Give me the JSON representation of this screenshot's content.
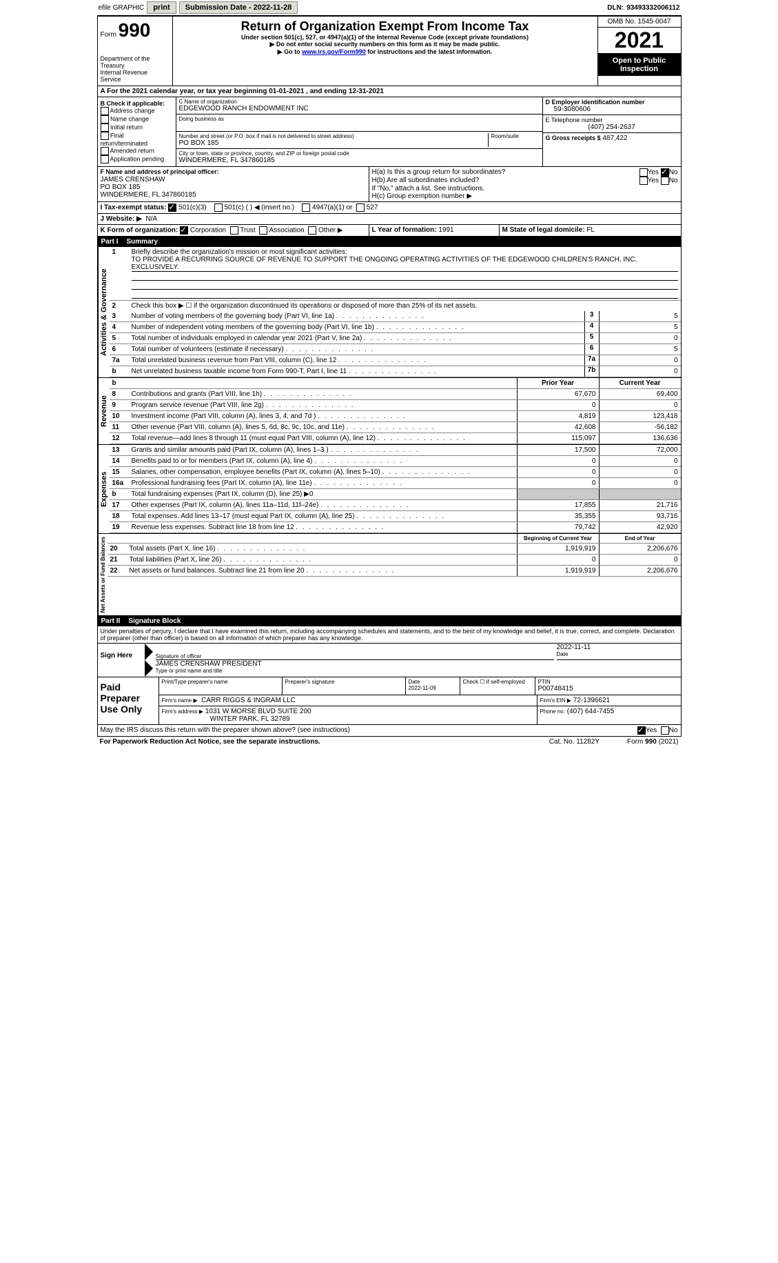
{
  "topbar": {
    "efile": "efile GRAPHIC",
    "print": "print",
    "submission": "Submission Date - 2022-11-28",
    "dln_label": "DLN:",
    "dln": "93493332006112"
  },
  "header": {
    "form_label": "Form",
    "form_num": "990",
    "dept": "Department of the Treasury",
    "irs": "Internal Revenue Service",
    "title": "Return of Organization Exempt From Income Tax",
    "subtitle": "Under section 501(c), 527, or 4947(a)(1) of the Internal Revenue Code (except private foundations)",
    "note1": "▶ Do not enter social security numbers on this form as it may be made public.",
    "note2_pre": "▶ Go to ",
    "note2_link": "www.irs.gov/Form990",
    "note2_post": " for instructions and the latest information.",
    "omb": "OMB No. 1545-0047",
    "year": "2021",
    "inspection": "Open to Public Inspection"
  },
  "line_a": "A For the 2021 calendar year, or tax year beginning 01-01-2021    , and ending 12-31-2021",
  "box_b": {
    "label": "B Check if applicable:",
    "opts": [
      "Address change",
      "Name change",
      "Initial return",
      "Final return/terminated",
      "Amended return",
      "Application pending"
    ]
  },
  "box_c": {
    "label": "C Name of organization",
    "name": "EDGEWOOD RANCH ENDOWMENT INC",
    "dba": "Doing business as",
    "addr_label": "Number and street (or P.O. box if mail is not delivered to street address)",
    "room_label": "Room/suite",
    "addr": "PO BOX 185",
    "city_label": "City or town, state or province, country, and ZIP or foreign postal code",
    "city": "WINDERMERE, FL  347860185"
  },
  "box_d": {
    "label": "D Employer identification number",
    "val": "59-3080606"
  },
  "box_e": {
    "label": "E Telephone number",
    "val": "(407) 254-2637"
  },
  "box_g": {
    "label": "G Gross receipts $",
    "val": "487,422"
  },
  "box_f": {
    "label": "F Name and address of principal officer:",
    "name": "JAMES CRENSHAW",
    "addr": "PO BOX 185",
    "city": "WINDERMERE, FL  347860185"
  },
  "box_h": {
    "ha": "H(a)  Is this a group return for subordinates?",
    "hb": "H(b)  Are all subordinates included?",
    "hb_note": "If \"No,\" attach a list. See instructions.",
    "hc": "H(c)  Group exemption number ▶"
  },
  "box_i": {
    "label": "I   Tax-exempt status:",
    "o1": "501(c)(3)",
    "o2": "501(c) (  ) ◀ (insert no.)",
    "o3": "4947(a)(1) or",
    "o4": "527"
  },
  "box_j": {
    "label": "J   Website: ▶",
    "val": "N/A"
  },
  "box_k": {
    "label": "K Form of organization:",
    "o1": "Corporation",
    "o2": "Trust",
    "o3": "Association",
    "o4": "Other ▶"
  },
  "box_l": {
    "label": "L Year of formation:",
    "val": "1991"
  },
  "box_m": {
    "label": "M State of legal domicile:",
    "val": "FL"
  },
  "part1": {
    "num": "Part I",
    "title": "Summary"
  },
  "summary": {
    "q1": "Briefly describe the organization's mission or most significant activities:",
    "mission": "TO PROVIDE A RECURRING SOURCE OF REVENUE TO SUPPORT THE ONGOING OPERATING ACTIVITIES OF THE EDGEWOOD CHILDREN'S RANCH, INC. EXCLUSIVELY.",
    "q2": "Check this box ▶ ☐ if the organization discontinued its operations or disposed of more than 25% of its net assets.",
    "hdr_prior": "Prior Year",
    "hdr_curr": "Current Year",
    "rows_gov": [
      {
        "n": "3",
        "d": "Number of voting members of the governing body (Part VI, line 1a)",
        "b": "3",
        "v": "5"
      },
      {
        "n": "4",
        "d": "Number of independent voting members of the governing body (Part VI, line 1b)",
        "b": "4",
        "v": "5"
      },
      {
        "n": "5",
        "d": "Total number of individuals employed in calendar year 2021 (Part V, line 2a)",
        "b": "5",
        "v": "0"
      },
      {
        "n": "6",
        "d": "Total number of volunteers (estimate if necessary)",
        "b": "6",
        "v": "5"
      },
      {
        "n": "7a",
        "d": "Total unrelated business revenue from Part VIII, column (C), line 12",
        "b": "7a",
        "v": "0"
      },
      {
        "n": "b",
        "d": "Net unrelated business taxable income from Form 990-T, Part I, line 11",
        "b": "7b",
        "v": "0"
      }
    ],
    "rows_rev": [
      {
        "n": "8",
        "d": "Contributions and grants (Part VIII, line 1h)",
        "p": "67,670",
        "c": "69,400"
      },
      {
        "n": "9",
        "d": "Program service revenue (Part VIII, line 2g)",
        "p": "0",
        "c": "0"
      },
      {
        "n": "10",
        "d": "Investment income (Part VIII, column (A), lines 3, 4, and 7d )",
        "p": "4,819",
        "c": "123,418"
      },
      {
        "n": "11",
        "d": "Other revenue (Part VIII, column (A), lines 5, 6d, 8c, 9c, 10c, and 11e)",
        "p": "42,608",
        "c": "-56,182"
      },
      {
        "n": "12",
        "d": "Total revenue—add lines 8 through 11 (must equal Part VIII, column (A), line 12)",
        "p": "115,097",
        "c": "136,636"
      }
    ],
    "rows_exp": [
      {
        "n": "13",
        "d": "Grants and similar amounts paid (Part IX, column (A), lines 1–3 )",
        "p": "17,500",
        "c": "72,000"
      },
      {
        "n": "14",
        "d": "Benefits paid to or for members (Part IX, column (A), line 4)",
        "p": "0",
        "c": "0"
      },
      {
        "n": "15",
        "d": "Salaries, other compensation, employee benefits (Part IX, column (A), lines 5–10)",
        "p": "0",
        "c": "0"
      },
      {
        "n": "16a",
        "d": "Professional fundraising fees (Part IX, column (A), line 11e)",
        "p": "0",
        "c": "0"
      },
      {
        "n": "b",
        "d": "Total fundraising expenses (Part IX, column (D), line 25) ▶0",
        "p": "",
        "c": "",
        "gray": true
      },
      {
        "n": "17",
        "d": "Other expenses (Part IX, column (A), lines 11a–11d, 11f–24e)",
        "p": "17,855",
        "c": "21,716"
      },
      {
        "n": "18",
        "d": "Total expenses. Add lines 13–17 (must equal Part IX, column (A), line 25)",
        "p": "35,355",
        "c": "93,716"
      },
      {
        "n": "19",
        "d": "Revenue less expenses. Subtract line 18 from line 12",
        "p": "79,742",
        "c": "42,920"
      }
    ],
    "hdr_begin": "Beginning of Current Year",
    "hdr_end": "End of Year",
    "rows_net": [
      {
        "n": "20",
        "d": "Total assets (Part X, line 16)",
        "p": "1,919,919",
        "c": "2,206,676"
      },
      {
        "n": "21",
        "d": "Total liabilities (Part X, line 26)",
        "p": "0",
        "c": "0"
      },
      {
        "n": "22",
        "d": "Net assets or fund balances. Subtract line 21 from line 20",
        "p": "1,919,919",
        "c": "2,206,676"
      }
    ],
    "side_gov": "Activities & Governance",
    "side_rev": "Revenue",
    "side_exp": "Expenses",
    "side_net": "Net Assets or Fund Balances"
  },
  "part2": {
    "num": "Part II",
    "title": "Signature Block"
  },
  "sig": {
    "penalty": "Under penalties of perjury, I declare that I have examined this return, including accompanying schedules and statements, and to the best of my knowledge and belief, it is true, correct, and complete. Declaration of preparer (other than officer) is based on all information of which preparer has any knowledge.",
    "sign_here": "Sign Here",
    "sig_officer": "Signature of officer",
    "date": "Date",
    "date_val": "2022-11-11",
    "name_title": "JAMES CRENSHAW  PRESIDENT",
    "type_name": "Type or print name and title",
    "paid": "Paid Preparer Use Only",
    "prep_name_lbl": "Print/Type preparer's name",
    "prep_sig_lbl": "Preparer's signature",
    "prep_date_lbl": "Date",
    "prep_date": "2022-11-09",
    "check_self": "Check ☐ if self-employed",
    "ptin_lbl": "PTIN",
    "ptin": "P00748415",
    "firm_name_lbl": "Firm's name    ▶",
    "firm_name": "CARR RIGGS & INGRAM LLC",
    "firm_ein_lbl": "Firm's EIN ▶",
    "firm_ein": "72-1396621",
    "firm_addr_lbl": "Firm's address ▶",
    "firm_addr1": "1031 W MORSE BLVD SUITE 200",
    "firm_addr2": "WINTER PARK, FL  32789",
    "phone_lbl": "Phone no.",
    "phone": "(407) 644-7455",
    "discuss": "May the IRS discuss this return with the preparer shown above? (see instructions)"
  },
  "footer": {
    "pra": "For Paperwork Reduction Act Notice, see the separate instructions.",
    "cat": "Cat. No. 11282Y",
    "form": "Form 990 (2021)"
  },
  "yesno": {
    "yes": "Yes",
    "no": "No"
  }
}
